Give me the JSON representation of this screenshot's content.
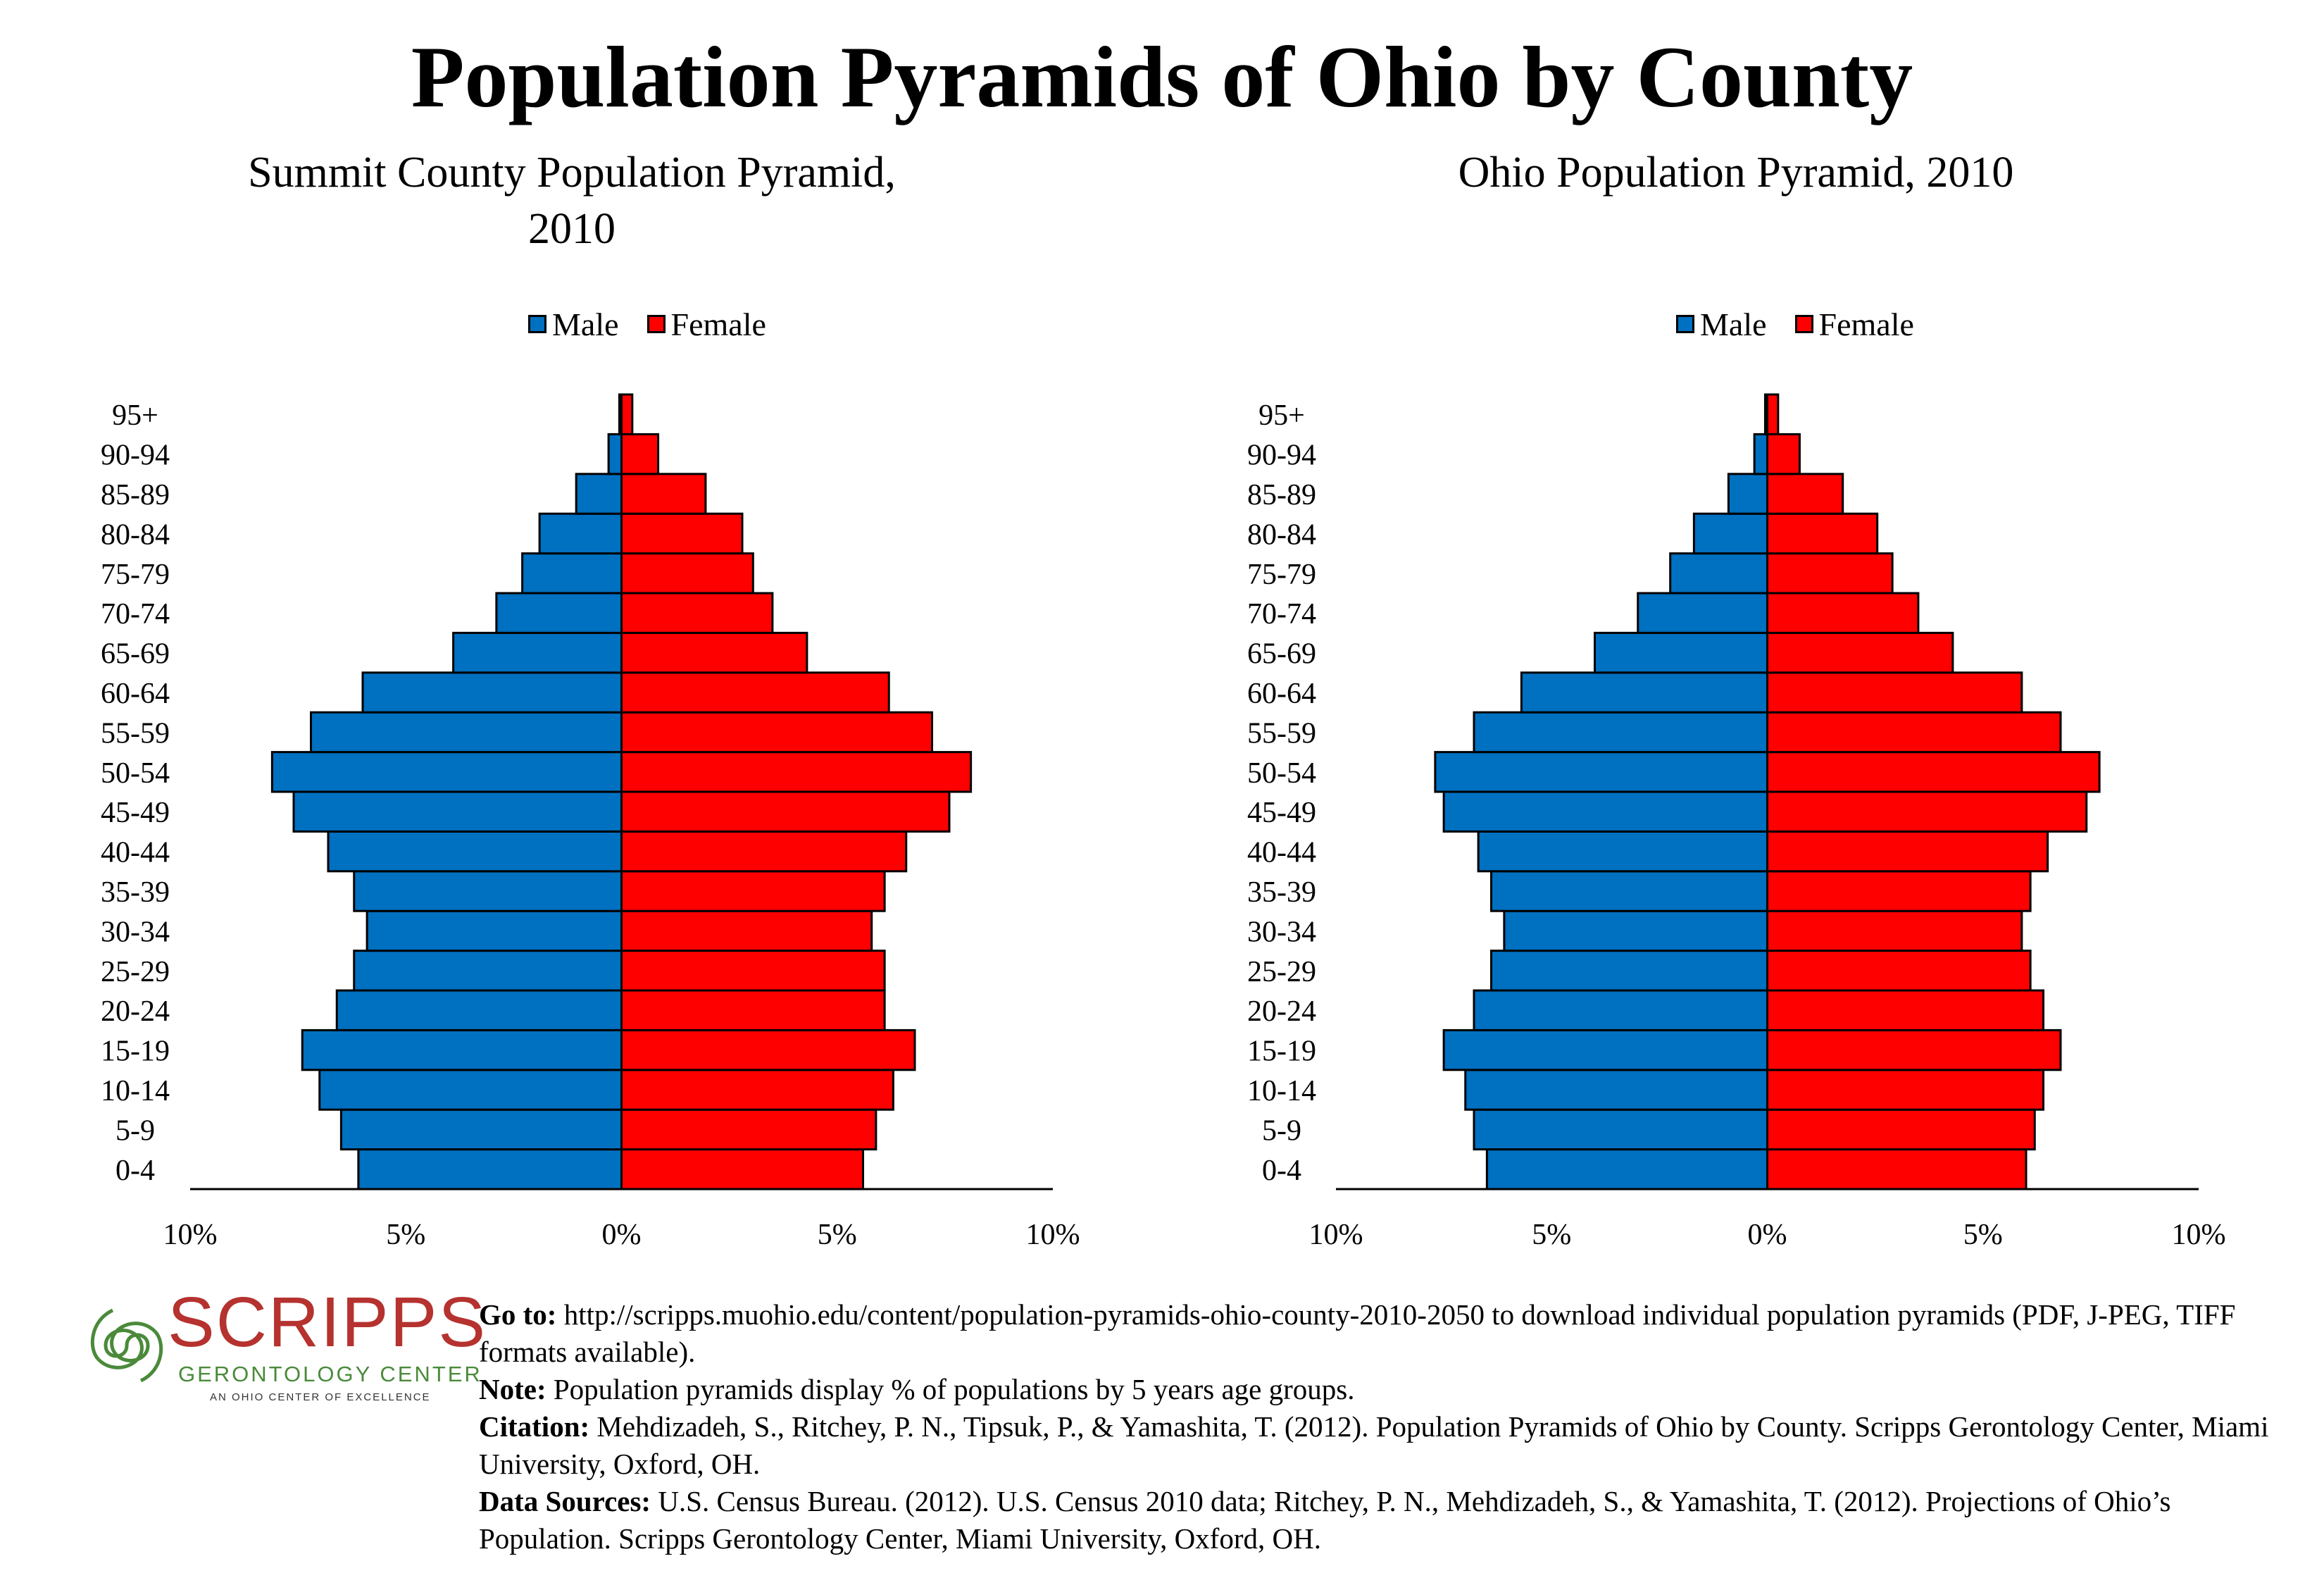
{
  "title": "Population Pyramids of Ohio by County",
  "legend": {
    "male": "Male",
    "female": "Female"
  },
  "colors": {
    "male": "#0070c0",
    "female": "#ff0000",
    "border": "#000000"
  },
  "logo": {
    "wordmark": "SCRIPPS",
    "subline": "GERONTOLOGY CENTER",
    "tagline": "AN OHIO CENTER OF EXCELLENCE",
    "mark": "spiral-emblem-icon"
  },
  "notes": {
    "goto_label": "Go to:",
    "goto_text": " http://scripps.muohio.edu/content/population-pyramids-ohio-county-2010-2050 to download individual population pyramids (PDF, J-PEG, TIFF formats available).",
    "note_label": "Note:",
    "note_text": " Population pyramids display % of populations by 5 years age groups.",
    "citation_label": "Citation:",
    "citation_text": " Mehdizadeh, S., Ritchey, P. N., Tipsuk, P., & Yamashita, T. (2012). Population Pyramids of Ohio by County. Scripps Gerontology Center, Miami University, Oxford, OH.",
    "sources_label": "Data Sources:",
    "sources_text": " U.S. Census Bureau. (2012). U.S. Census 2010 data; Ritchey, P. N., Mehdizadeh, S., & Yamashita, T. (2012). Projections of Ohio’s Population. Scripps Gerontology Center, Miami University, Oxford, OH."
  },
  "chart_data": [
    {
      "type": "bar",
      "orientation": "horizontal-pyramid",
      "title": "Summit County Population Pyramid, 2010",
      "categories": [
        "0-4",
        "5-9",
        "10-14",
        "15-19",
        "20-24",
        "25-29",
        "30-34",
        "35-39",
        "40-44",
        "45-49",
        "50-54",
        "55-59",
        "60-64",
        "65-69",
        "70-74",
        "75-79",
        "80-84",
        "85-89",
        "90-94",
        "95+"
      ],
      "series": [
        {
          "name": "Male",
          "values": [
            6.1,
            6.5,
            7.0,
            7.4,
            6.6,
            6.2,
            5.9,
            6.2,
            6.8,
            7.6,
            8.1,
            7.2,
            6.0,
            3.9,
            2.9,
            2.3,
            1.9,
            1.05,
            0.3,
            0.05
          ]
        },
        {
          "name": "Female",
          "values": [
            5.6,
            5.9,
            6.3,
            6.8,
            6.1,
            6.1,
            5.8,
            6.1,
            6.6,
            7.6,
            8.1,
            7.2,
            6.2,
            4.3,
            3.5,
            3.05,
            2.8,
            1.95,
            0.85,
            0.25
          ]
        }
      ],
      "xlim": [
        -10,
        10
      ],
      "xticks": [
        "10%",
        "5%",
        "0%",
        "5%",
        "10%"
      ],
      "legend_position": "top"
    },
    {
      "type": "bar",
      "orientation": "horizontal-pyramid",
      "title": "Ohio Population Pyramid, 2010",
      "categories": [
        "0-4",
        "5-9",
        "10-14",
        "15-19",
        "20-24",
        "25-29",
        "30-34",
        "35-39",
        "40-44",
        "45-49",
        "50-54",
        "55-59",
        "60-64",
        "65-69",
        "70-74",
        "75-79",
        "80-84",
        "85-89",
        "90-94",
        "95+"
      ],
      "series": [
        {
          "name": "Male",
          "values": [
            6.5,
            6.8,
            7.0,
            7.5,
            6.8,
            6.4,
            6.1,
            6.4,
            6.7,
            7.5,
            7.7,
            6.8,
            5.7,
            4.0,
            3.0,
            2.25,
            1.7,
            0.9,
            0.3,
            0.05
          ]
        },
        {
          "name": "Female",
          "values": [
            6.0,
            6.2,
            6.4,
            6.8,
            6.4,
            6.1,
            5.9,
            6.1,
            6.5,
            7.4,
            7.7,
            6.8,
            5.9,
            4.3,
            3.5,
            2.9,
            2.55,
            1.75,
            0.75,
            0.25
          ]
        }
      ],
      "xlim": [
        -10,
        10
      ],
      "xticks": [
        "10%",
        "5%",
        "0%",
        "5%",
        "10%"
      ],
      "legend_position": "top"
    }
  ]
}
